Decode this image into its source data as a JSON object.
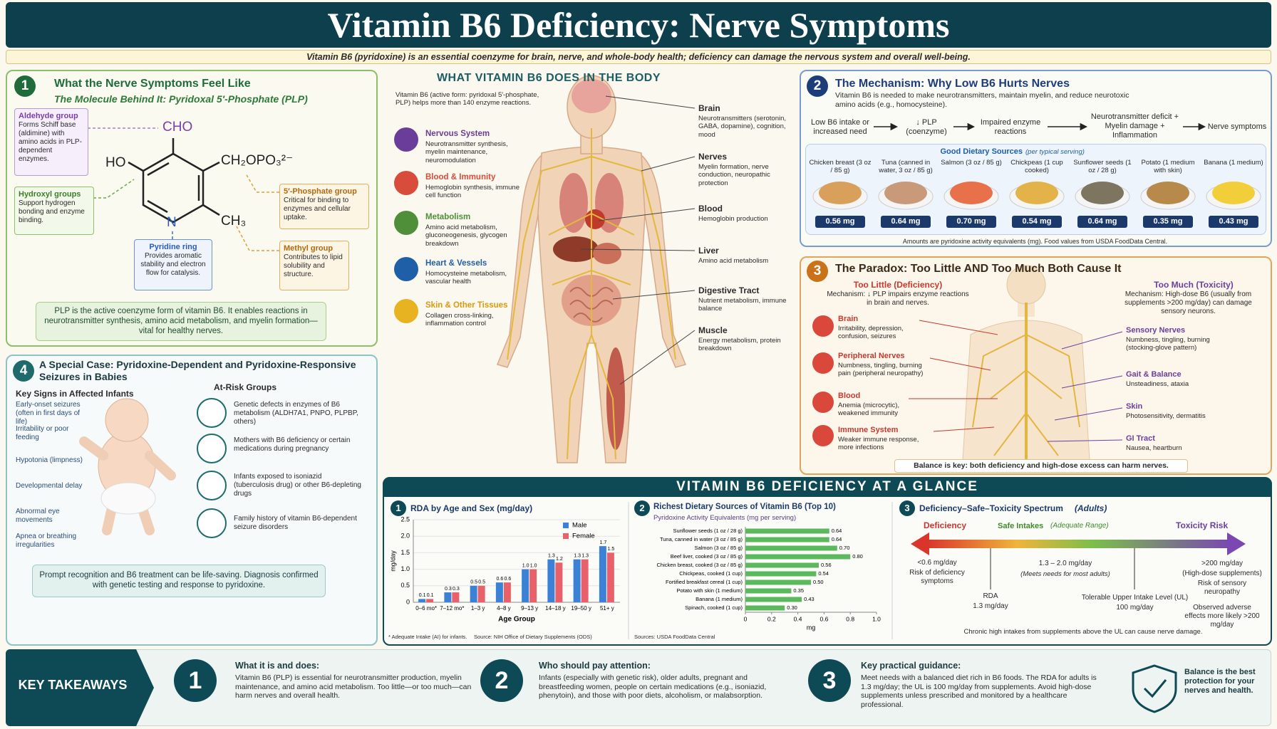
{
  "header": {
    "title": "Vitamin B6 Deficiency: Nerve Symptoms",
    "subtitle": "Vitamin B6 (pyridoxine) is an essential coenzyme for brain, nerve, and whole-body health; deficiency can damage the nervous system and overall well-being."
  },
  "section1": {
    "number": "1",
    "title": "What the Nerve Symptoms Feel Like",
    "subtitle": "The Molecule Behind It: Pyridoxal 5′-Phosphate (PLP)",
    "molecule": {
      "cho": "CHO",
      "ho": "HO",
      "phosphate": "CH₂OPO₃²⁻",
      "n": "N",
      "methyl": "CH₃"
    },
    "callouts": [
      {
        "title": "Aldehyde group",
        "text": "Forms Schiff base (aldimine) with amino acids in PLP-dependent enzymes."
      },
      {
        "title": "Hydroxyl groups",
        "text": "Support hydrogen bonding and enzyme binding."
      },
      {
        "title": "Pyridine ring",
        "text": "Provides aromatic stability and electron flow for catalysis."
      },
      {
        "title": "5′-Phosphate group",
        "text": "Critical for binding to enzymes and cellular uptake."
      },
      {
        "title": "Methyl group",
        "text": "Contributes to lipid solubility and structure."
      }
    ],
    "note": "PLP is the active coenzyme form of vitamin B6. It enables reactions in neurotransmitter synthesis, amino acid metabolism, and myelin formation—vital for healthy nerves."
  },
  "body": {
    "title": "WHAT VITAMIN B6 DOES IN THE BODY",
    "intro": "Vitamin B6 (active form: pyridoxal 5′-phosphate, PLP) helps more than 140 enzyme reactions.",
    "systems": [
      {
        "name": "Nervous System",
        "text": "Neurotransmitter synthesis, myelin maintenance, neuromodulation"
      },
      {
        "name": "Blood & Immunity",
        "text": "Hemoglobin synthesis, immune cell function"
      },
      {
        "name": "Metabolism",
        "text": "Amino acid metabolism, gluconeogenesis, glycogen breakdown"
      },
      {
        "name": "Heart & Vessels",
        "text": "Homocysteine metabolism, vascular health"
      },
      {
        "name": "Skin & Other Tissues",
        "text": "Collagen cross-linking, inflammation control"
      }
    ],
    "organs": [
      {
        "name": "Brain",
        "text": "Neurotransmitters (serotonin, GABA, dopamine), cognition, mood"
      },
      {
        "name": "Nerves",
        "text": "Myelin formation, nerve conduction, neuropathic protection"
      },
      {
        "name": "Blood",
        "text": "Hemoglobin production"
      },
      {
        "name": "Liver",
        "text": "Amino acid metabolism"
      },
      {
        "name": "Digestive Tract",
        "text": "Nutrient metabolism, immune balance"
      },
      {
        "name": "Muscle",
        "text": "Energy metabolism, protein breakdown"
      }
    ]
  },
  "section2": {
    "number": "2",
    "title": "The Mechanism: Why Low B6 Hurts Nerves",
    "text": "Vitamin B6 is needed to make neurotransmitters, maintain myelin, and reduce neurotoxic amino acids (e.g., homocysteine).",
    "flow": [
      "Low B6 intake or increased need",
      "↓ PLP (coenzyme)",
      "Impaired enzyme reactions",
      "Neurotransmitter deficit + Myelin damage + Inflammation",
      "Nerve symptoms"
    ],
    "foods_title": "Good Dietary Sources",
    "foods_note": "(per typical serving)",
    "foods": [
      {
        "name": "Chicken breast (3 oz / 85 g)",
        "amount": "0.56 mg"
      },
      {
        "name": "Tuna (canned in water, 3 oz / 85 g)",
        "amount": "0.64 mg"
      },
      {
        "name": "Salmon (3 oz / 85 g)",
        "amount": "0.70 mg"
      },
      {
        "name": "Chickpeas (1 cup cooked)",
        "amount": "0.54 mg"
      },
      {
        "name": "Sunflower seeds (1 oz / 28 g)",
        "amount": "0.64 mg"
      },
      {
        "name": "Potato (1 medium with skin)",
        "amount": "0.35 mg"
      },
      {
        "name": "Banana (1 medium)",
        "amount": "0.43 mg"
      }
    ],
    "footnote": "Amounts are pyridoxine activity equivalents (mg). Food values from USDA FoodData Central."
  },
  "section3": {
    "number": "3",
    "title": "The Paradox: Too Little AND Too Much Both Cause It",
    "deficiency": {
      "heading": "Too Little (Deficiency)",
      "mechanism": "Mechanism: ↓ PLP impairs enzyme reactions in brain and nerves.",
      "items": [
        {
          "name": "Brain",
          "text": "Irritability, depression, confusion, seizures"
        },
        {
          "name": "Peripheral Nerves",
          "text": "Numbness, tingling, burning pain (peripheral neuropathy)"
        },
        {
          "name": "Blood",
          "text": "Anemia (microcytic), weakened immunity"
        },
        {
          "name": "Immune System",
          "text": "Weaker immune response, more infections"
        }
      ]
    },
    "toxicity": {
      "heading": "Too Much (Toxicity)",
      "mechanism": "Mechanism: High-dose B6 (usually from supplements >200 mg/day) can damage sensory neurons.",
      "items": [
        {
          "name": "Sensory Nerves",
          "text": "Numbness, tingling, burning (stocking-glove pattern)"
        },
        {
          "name": "Gait & Balance",
          "text": "Unsteadiness, ataxia"
        },
        {
          "name": "Skin",
          "text": "Photosensitivity, dermatitis"
        },
        {
          "name": "GI Tract",
          "text": "Nausea, heartburn"
        }
      ]
    },
    "footer": "Balance is key: both deficiency and high-dose excess can harm nerves."
  },
  "section4": {
    "number": "4",
    "title": "A Special Case: Pyridoxine-Dependent and Pyridoxine-Responsive Seizures in Babies",
    "signs_title": "Key Signs in Affected Infants",
    "signs": [
      "Early-onset seizures (often in first days of life)",
      "Irritability or poor feeding",
      "Hypotonia (limpness)",
      "Developmental delay",
      "Abnormal eye movements",
      "Apnea or breathing irregularities"
    ],
    "risk_title": "At-Risk Groups",
    "risks": [
      "Genetic defects in enzymes of B6 metabolism (ALDH7A1, PNPO, PLPBP, others)",
      "Mothers with B6 deficiency or certain medications during pregnancy",
      "Infants exposed to isoniazid (tuberculosis drug) or other B6-depleting drugs",
      "Family history of vitamin B6-dependent seizure disorders"
    ],
    "note": "Prompt recognition and B6 treatment can be life-saving. Diagnosis confirmed with genetic testing and response to pyridoxine."
  },
  "glance": {
    "title": "VITAMIN B6 DEFICIENCY AT A GLANCE"
  },
  "chart_data": [
    {
      "type": "bar",
      "number": "1",
      "title": "RDA by Age and Sex (mg/day)",
      "ylabel": "mg/day",
      "xlabel": "Age Group",
      "categories": [
        "0–6 mo*",
        "7–12 mo*",
        "1–3 y",
        "4–8 y",
        "9–13 y",
        "14–18 y",
        "19–50 y",
        "51+ y"
      ],
      "series": [
        {
          "name": "Male",
          "color": "#3b82d6",
          "values": [
            0.1,
            0.3,
            0.5,
            0.6,
            1.0,
            1.3,
            1.3,
            1.7
          ],
          "value_labels": [
            "0.1",
            "0.3",
            "0.5",
            "0.6",
            "1.0",
            "1.3",
            "1.3",
            "1.7"
          ]
        },
        {
          "name": "Female",
          "color": "#e8606a",
          "values": [
            0.1,
            0.3,
            0.5,
            0.6,
            1.0,
            1.2,
            1.3,
            1.5
          ],
          "value_labels": [
            "0.1",
            "0.3",
            "0.5",
            "0.6",
            "1.0",
            "1.2",
            "1.3",
            "1.5"
          ]
        }
      ],
      "ylim": [
        0,
        2.5
      ],
      "yticks": [
        0,
        0.5,
        {
          "value": 1,
          "label": "1.0"
        },
        1.5,
        {
          "value": 2,
          "label": "2.0"
        },
        2.5
      ],
      "grid": true,
      "legend": "top-right",
      "footnote": "* Adequate Intake (AI) for infants.",
      "source": "Source: NIH Office of Dietary Supplements (ODS)"
    },
    {
      "type": "hbar",
      "number": "2",
      "title": "Richest Dietary Sources of Vitamin B6 (Top 10)",
      "subtitle": "Pyridoxine Activity Equivalents (mg per serving)",
      "categories": [
        "Sunflower seeds (1 oz / 28 g)",
        "Tuna, canned in water (3 oz / 85 g)",
        "Salmon (3 oz / 85 g)",
        "Beef liver, cooked (3 oz / 85 g)",
        "Chicken breast, cooked (3 oz / 85 g)",
        "Chickpeas, cooked (1 cup)",
        "Fortified breakfast cereal (1 cup)",
        "Potato with skin (1 medium)",
        "Banana (1 medium)",
        "Spinach, cooked (1 cup)"
      ],
      "values": [
        0.64,
        0.64,
        0.7,
        0.8,
        0.56,
        0.54,
        0.5,
        0.35,
        0.43,
        0.3
      ],
      "value_labels": [
        "0.64",
        "0.64",
        "0.70",
        "0.80",
        "0.56",
        "0.54",
        "0.50",
        "0.35",
        "0.43",
        "0.30"
      ],
      "color": "#5cb85c",
      "xlim": [
        0,
        1
      ],
      "xticks": [
        0,
        0.2,
        0.4,
        0.6,
        0.8,
        {
          "value": 1,
          "label": "1.0"
        }
      ],
      "xlabel": "mg",
      "grid": false,
      "source": "Sources: USDA FoodData Central"
    }
  ],
  "spectrum": {
    "number": "3",
    "title": "Deficiency–Safe–Toxicity Spectrum",
    "title_note": "(Adults)",
    "deficiency": "Deficiency",
    "safe": "Safe Intakes",
    "safe_note": "(Adequate Range)",
    "toxicity": "Toxicity Risk",
    "low": "<0.6 mg/day",
    "low_text": "Risk of deficiency symptoms",
    "rda": "RDA",
    "rda_value": "1.3 mg/day",
    "range": "1.3 – 2.0 mg/day",
    "range_note": "(Meets needs for most adults)",
    "ul": "Tolerable Upper Intake Level (UL)",
    "ul_value": "100 mg/day",
    "high": ">200 mg/day",
    "high_note": "(High-dose supplements)",
    "high_risk": "Risk of sensory neuropathy",
    "high_text": "Observed adverse effects more likely >200 mg/day",
    "footer": "Chronic high intakes from supplements above the UL can cause nerve damage."
  },
  "takeaways": {
    "label": "KEY TAKEAWAYS",
    "items": [
      {
        "number": "1",
        "title": "What it is and does:",
        "text": "Vitamin B6 (PLP) is essential for neurotransmitter production, myelin maintenance, and amino acid metabolism. Too little—or too much—can harm nerves and overall health."
      },
      {
        "number": "2",
        "title": "Who should pay attention:",
        "text": "Infants (especially with genetic risk), older adults, pregnant and breastfeeding women, people on certain medications (e.g., isoniazid, phenytoin), and those with poor diets, alcoholism, or malabsorption."
      },
      {
        "number": "3",
        "title": "Key practical guidance:",
        "text": "Meet needs with a balanced diet rich in B6 foods. The RDA for adults is 1.3 mg/day; the UL is 100 mg/day from supplements. Avoid high-dose supplements unless prescribed and monitored by a healthcare professional."
      }
    ],
    "closing": "Balance is the best protection for your nerves and health."
  }
}
